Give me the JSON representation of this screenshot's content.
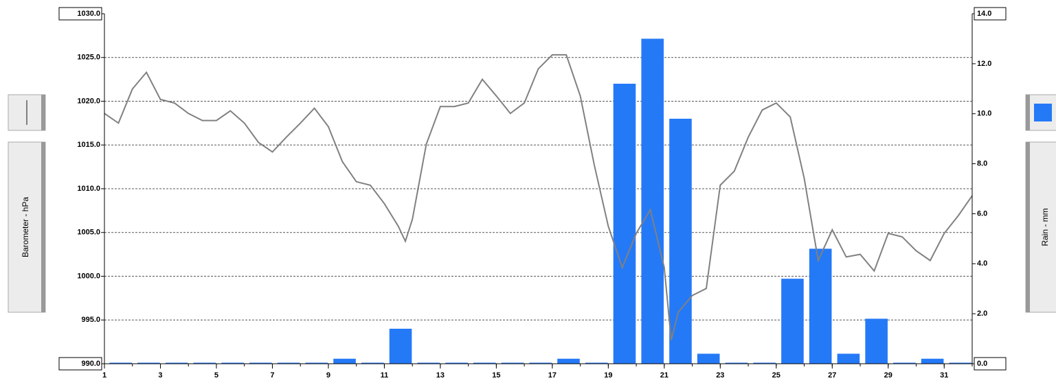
{
  "chart_data": {
    "type": "bar-line",
    "y_label": "Barometer - hPa",
    "y2_label": "Rain - mm",
    "xlim": [
      1,
      32
    ],
    "xticks": [
      1,
      3,
      5,
      7,
      9,
      11,
      13,
      15,
      17,
      19,
      21,
      23,
      25,
      27,
      29,
      31
    ],
    "ylim": [
      990,
      1030
    ],
    "yticks": [
      {
        "value": 990,
        "label": "990.0"
      },
      {
        "value": 995,
        "label": "995.0"
      },
      {
        "value": 1000,
        "label": "1000.0"
      },
      {
        "value": 1005,
        "label": "1005.0"
      },
      {
        "value": 1010,
        "label": "1010.0"
      },
      {
        "value": 1015,
        "label": "1015.0"
      },
      {
        "value": 1020,
        "label": "1020.0"
      },
      {
        "value": 1025,
        "label": "1025.0"
      },
      {
        "value": 1030,
        "label": "1030.0"
      }
    ],
    "y2lim": [
      0,
      14
    ],
    "y2ticks": [
      {
        "value": 0,
        "label": "0.0"
      },
      {
        "value": 2,
        "label": "2.0"
      },
      {
        "value": 4,
        "label": "4.0"
      },
      {
        "value": 6,
        "label": "6.0"
      },
      {
        "value": 8,
        "label": "8.0"
      },
      {
        "value": 10,
        "label": "10.0"
      },
      {
        "value": 12,
        "label": "12.0"
      },
      {
        "value": 14,
        "label": "14.0"
      }
    ],
    "grid": true,
    "series": [
      {
        "name": "Barometer",
        "type": "line",
        "color": "#808080",
        "x": [
          1,
          1.5,
          2,
          2.5,
          3,
          3.5,
          4,
          4.5,
          5,
          5.5,
          6,
          6.5,
          7,
          7.5,
          8,
          8.5,
          9,
          9.5,
          10,
          10.5,
          11,
          11.5,
          11.75,
          12,
          12.5,
          13,
          13.5,
          14,
          14.5,
          15,
          15.5,
          16,
          16.5,
          17,
          17.5,
          18,
          18.5,
          19,
          19.5,
          20,
          20.5,
          21,
          21.25,
          21.5,
          22,
          22.5,
          23,
          23.5,
          24,
          24.5,
          25,
          25.5,
          26,
          26.5,
          27,
          27.5,
          28,
          28.5,
          29,
          29.5,
          30,
          30.5,
          31,
          31.5,
          32
        ],
        "values": [
          1018.6,
          1017.5,
          1021.4,
          1023.3,
          1020.2,
          1019.8,
          1018.6,
          1017.8,
          1017.8,
          1018.9,
          1017.5,
          1015.3,
          1014.2,
          1015.9,
          1017.5,
          1019.2,
          1017.1,
          1013.1,
          1010.8,
          1010.4,
          1008.3,
          1005.7,
          1004.0,
          1006.5,
          1015.1,
          1019.4,
          1019.4,
          1019.8,
          1022.5,
          1020.6,
          1018.6,
          1019.8,
          1023.7,
          1025.3,
          1025.3,
          1020.6,
          1012.7,
          1005.7,
          1001.0,
          1004.9,
          1007.6,
          1001.0,
          992.7,
          995.9,
          997.8,
          998.6,
          1010.4,
          1012.0,
          1015.9,
          1019.0,
          1019.8,
          1018.2,
          1011.2,
          1001.8,
          1005.3,
          1002.2,
          1002.5,
          1000.6,
          1004.9,
          1004.5,
          1002.9,
          1001.8,
          1004.9,
          1006.9,
          1009.2
        ]
      },
      {
        "name": "Rain",
        "type": "bar",
        "axis": "y2",
        "color": "#2479f7",
        "x": [
          1,
          2,
          3,
          4,
          5,
          6,
          7,
          8,
          9,
          10,
          11,
          12,
          13,
          14,
          15,
          16,
          17,
          18,
          19,
          20,
          21,
          22,
          23,
          24,
          25,
          26,
          27,
          28,
          29,
          30,
          31
        ],
        "values": [
          0,
          0,
          0,
          0,
          0,
          0,
          0,
          0,
          0.2,
          0,
          1.4,
          0,
          0,
          0,
          0,
          0,
          0.2,
          0,
          11.2,
          13.0,
          9.8,
          0.4,
          0,
          0,
          3.4,
          4.6,
          0.4,
          1.8,
          0,
          0.2,
          0
        ]
      }
    ]
  }
}
